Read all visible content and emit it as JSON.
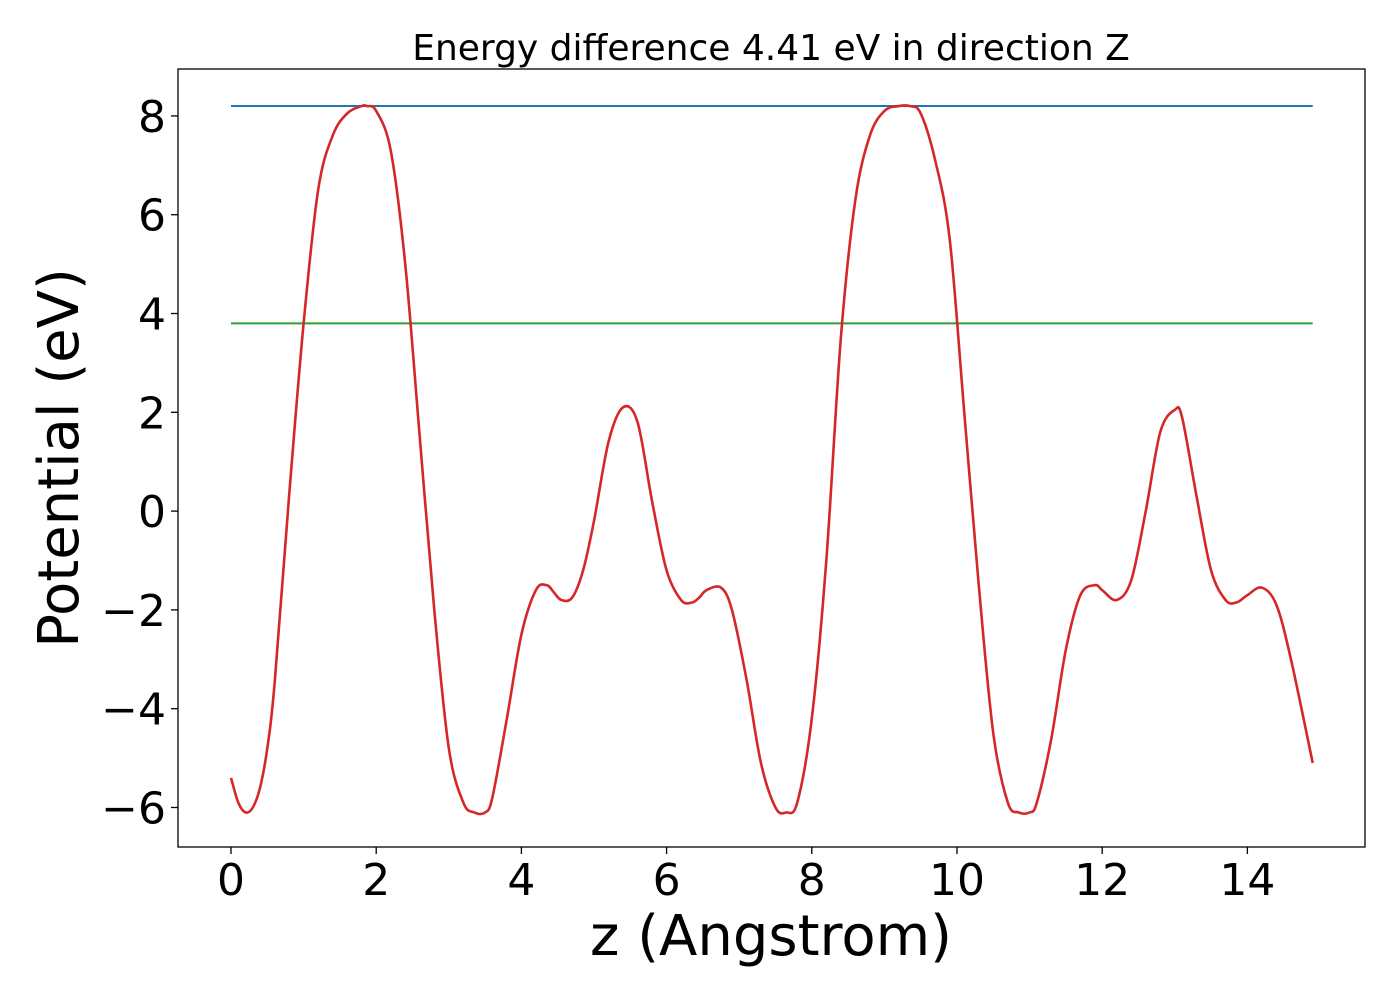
{
  "chart_data": {
    "type": "line",
    "title": "Energy difference 4.41 eV in direction Z",
    "xlabel": "z (Angstrom)",
    "ylabel": "Potential (eV)",
    "xlim": [
      -0.73,
      15.62
    ],
    "ylim": [
      -6.8,
      8.95
    ],
    "xticks": [
      0,
      2,
      4,
      6,
      8,
      10,
      12,
      14
    ],
    "yticks": [
      -6,
      -4,
      -2,
      0,
      2,
      4,
      6,
      8
    ],
    "grid": false,
    "legend": "none",
    "series": [
      {
        "color": "#d62728",
        "x": [
          0.0,
          0.1,
          0.2,
          0.3,
          0.4,
          0.5,
          0.6,
          0.8,
          1.0,
          1.2,
          1.4,
          1.6,
          1.8,
          1.87,
          2.0,
          2.2,
          2.4,
          2.6,
          2.8,
          3.0,
          3.2,
          3.35,
          3.5,
          3.6,
          3.8,
          4.0,
          4.2,
          4.35,
          4.45,
          4.55,
          4.7,
          4.85,
          5.0,
          5.2,
          5.4,
          5.6,
          5.8,
          6.0,
          6.2,
          6.35,
          6.45,
          6.55,
          6.75,
          6.9,
          7.1,
          7.3,
          7.5,
          7.65,
          7.8,
          8.0,
          8.2,
          8.4,
          8.6,
          8.8,
          9.0,
          9.2,
          9.35,
          9.5,
          9.7,
          9.9,
          10.1,
          10.3,
          10.5,
          10.7,
          10.85,
          11.0,
          11.1,
          11.3,
          11.5,
          11.7,
          11.9,
          12.0,
          12.2,
          12.4,
          12.6,
          12.8,
          13.0,
          13.1,
          13.3,
          13.5,
          13.7,
          13.85,
          14.0,
          14.2,
          14.4,
          14.6,
          14.9
        ],
        "y": [
          -5.4,
          -5.9,
          -6.1,
          -6.0,
          -5.6,
          -4.8,
          -3.5,
          0.3,
          3.8,
          6.5,
          7.6,
          8.05,
          8.2,
          8.2,
          8.1,
          7.3,
          5.0,
          1.5,
          -2.0,
          -4.8,
          -5.9,
          -6.1,
          -6.1,
          -5.8,
          -4.2,
          -2.5,
          -1.6,
          -1.5,
          -1.65,
          -1.8,
          -1.75,
          -1.2,
          -0.2,
          1.4,
          2.1,
          1.8,
          0.2,
          -1.2,
          -1.8,
          -1.85,
          -1.75,
          -1.6,
          -1.55,
          -2.0,
          -3.4,
          -5.1,
          -6.0,
          -6.1,
          -5.9,
          -4.2,
          -1.0,
          3.5,
          6.3,
          7.6,
          8.1,
          8.2,
          8.2,
          8.05,
          7.1,
          5.5,
          2.0,
          -1.5,
          -4.5,
          -5.9,
          -6.1,
          -6.1,
          -5.9,
          -4.6,
          -2.8,
          -1.7,
          -1.5,
          -1.6,
          -1.8,
          -1.4,
          0.0,
          1.6,
          2.05,
          1.9,
          0.3,
          -1.2,
          -1.8,
          -1.85,
          -1.7,
          -1.55,
          -1.9,
          -3.0,
          -5.1
        ]
      },
      {
        "color": "#1f77b4",
        "x": [
          0,
          14.9
        ],
        "y": [
          8.2,
          8.2
        ]
      },
      {
        "color": "#2ca02c",
        "x": [
          0,
          14.9
        ],
        "y": [
          3.8,
          3.8
        ]
      }
    ]
  }
}
